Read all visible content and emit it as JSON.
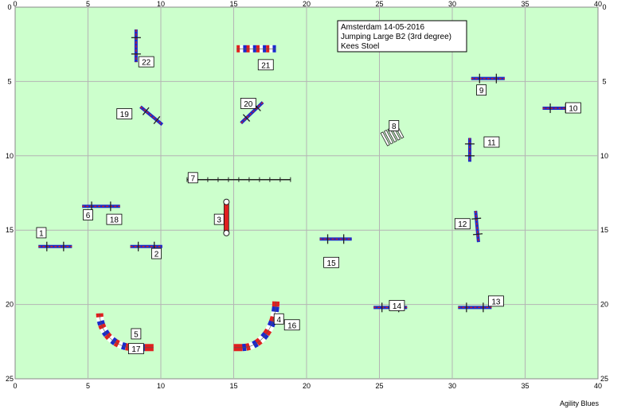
{
  "field": {
    "background": "#ccffcc",
    "grid_color": "#b4b4b4",
    "x_ticks": [
      "0",
      "5",
      "10",
      "15",
      "20",
      "25",
      "30",
      "35",
      "40"
    ],
    "y_ticks": [
      "0",
      "5",
      "10",
      "15",
      "20",
      "25"
    ]
  },
  "info": {
    "line1": "Amsterdam 14-05-2016",
    "line2": "Jumping Large B2 (3rd degree)",
    "line3": "Kees Stoel"
  },
  "footer": "Agility Blues",
  "labels": [
    {
      "id": "1",
      "x": 1.8,
      "y": 15.2
    },
    {
      "id": "2",
      "x": 9.7,
      "y": 16.6
    },
    {
      "id": "3",
      "x": 14.0,
      "y": 14.3
    },
    {
      "id": "4",
      "x": 18.1,
      "y": 21.0
    },
    {
      "id": "5",
      "x": 8.3,
      "y": 22.0
    },
    {
      "id": "6",
      "x": 5.0,
      "y": 14.0
    },
    {
      "id": "7",
      "x": 12.2,
      "y": 11.5
    },
    {
      "id": "8",
      "x": 26.0,
      "y": 8.0
    },
    {
      "id": "9",
      "x": 32.0,
      "y": 5.6
    },
    {
      "id": "10",
      "x": 38.3,
      "y": 6.8
    },
    {
      "id": "11",
      "x": 32.7,
      "y": 9.1
    },
    {
      "id": "12",
      "x": 30.7,
      "y": 14.6
    },
    {
      "id": "13",
      "x": 33.0,
      "y": 19.8
    },
    {
      "id": "14",
      "x": 26.2,
      "y": 20.1
    },
    {
      "id": "15",
      "x": 21.7,
      "y": 17.2
    },
    {
      "id": "16",
      "x": 19.0,
      "y": 21.4
    },
    {
      "id": "17",
      "x": 8.3,
      "y": 23.0
    },
    {
      "id": "18",
      "x": 6.8,
      "y": 14.3
    },
    {
      "id": "19",
      "x": 7.5,
      "y": 7.2
    },
    {
      "id": "20",
      "x": 16.0,
      "y": 6.5
    },
    {
      "id": "21",
      "x": 17.2,
      "y": 3.9
    },
    {
      "id": "22",
      "x": 9.0,
      "y": 3.7
    }
  ],
  "colors": {
    "pole": "#cc2222",
    "blue": "#1a2acc",
    "red": "#e02020",
    "white": "#ffffff",
    "dark": "#222222"
  }
}
